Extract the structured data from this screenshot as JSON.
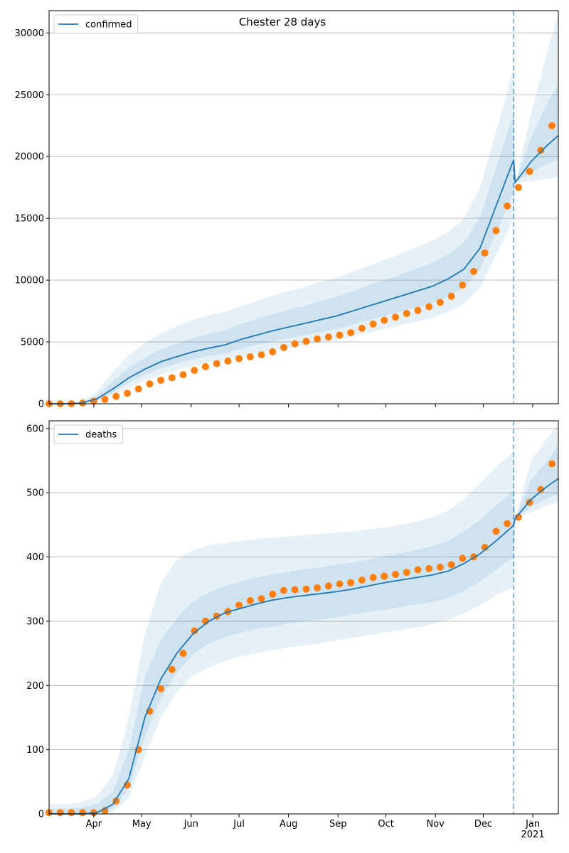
{
  "chart_data": [
    {
      "type": "line",
      "title": "Chester 28 days",
      "x": [
        63,
        73,
        83,
        93,
        103,
        113,
        123,
        133,
        143,
        153,
        163,
        173,
        183,
        193,
        203,
        213,
        223,
        233,
        243,
        253,
        263,
        273,
        283,
        293,
        303,
        313,
        323,
        333,
        343,
        353,
        354,
        355,
        365,
        375,
        382
      ],
      "series": [
        {
          "name": "confirmed",
          "color": "#1f77b4",
          "values": [
            0,
            0,
            50,
            400,
            1200,
            2100,
            2800,
            3400,
            3800,
            4200,
            4500,
            4750,
            5200,
            5550,
            5900,
            6200,
            6500,
            6800,
            7100,
            7500,
            7900,
            8300,
            8700,
            9100,
            9500,
            10100,
            10900,
            12600,
            16000,
            19400,
            19700,
            17900,
            19600,
            20900,
            21700
          ]
        }
      ],
      "band_color": "#1f77b4",
      "bands": [
        {
          "lower": [
            0,
            0,
            20,
            200,
            700,
            1300,
            1900,
            2400,
            2750,
            3050,
            3300,
            3500,
            3800,
            4050,
            4300,
            4500,
            4750,
            4950,
            5150,
            5450,
            5750,
            6050,
            6350,
            6650,
            6950,
            7450,
            8100,
            9400,
            12000,
            14700,
            14900,
            17900,
            18000,
            18200,
            18300
          ],
          "upper": [
            0,
            0,
            150,
            1000,
            2600,
            3900,
            4900,
            5700,
            6300,
            6800,
            7150,
            7450,
            7900,
            8300,
            8750,
            9100,
            9450,
            9850,
            10200,
            10700,
            11150,
            11650,
            12100,
            12650,
            13200,
            13900,
            15000,
            17500,
            22000,
            26700,
            27100,
            17900,
            23500,
            28500,
            31500
          ]
        },
        {
          "lower": [
            0,
            0,
            35,
            300,
            950,
            1700,
            2350,
            2900,
            3250,
            3600,
            3850,
            4050,
            4450,
            4750,
            5050,
            5300,
            5550,
            5800,
            6050,
            6400,
            6750,
            7100,
            7450,
            7800,
            8150,
            8700,
            9400,
            10900,
            13800,
            16800,
            17000,
            17900,
            18700,
            19400,
            19800
          ],
          "upper": [
            0,
            0,
            90,
            650,
            1800,
            2900,
            3700,
            4400,
            4850,
            5300,
            5650,
            5950,
            6450,
            6850,
            7250,
            7600,
            7950,
            8300,
            8650,
            9100,
            9550,
            10000,
            10450,
            10950,
            11400,
            12100,
            13050,
            15100,
            19100,
            23100,
            23500,
            17900,
            21500,
            24300,
            25800
          ]
        }
      ],
      "observed": {
        "color": "#ff7f0e",
        "x": [
          63,
          70,
          77,
          84,
          91,
          98,
          105,
          112,
          119,
          126,
          133,
          140,
          147,
          154,
          161,
          168,
          175,
          182,
          189,
          196,
          203,
          210,
          217,
          224,
          231,
          238,
          245,
          252,
          259,
          266,
          273,
          280,
          287,
          294,
          301,
          308,
          315,
          322,
          329,
          336,
          343,
          350,
          357,
          364,
          371,
          378
        ],
        "values": [
          0,
          0,
          10,
          60,
          200,
          350,
          600,
          850,
          1200,
          1600,
          1900,
          2100,
          2350,
          2700,
          3000,
          3250,
          3450,
          3650,
          3800,
          3950,
          4200,
          4550,
          4850,
          5050,
          5250,
          5400,
          5550,
          5750,
          6100,
          6450,
          6750,
          7000,
          7300,
          7550,
          7850,
          8200,
          8700,
          9600,
          10700,
          12200,
          14000,
          16000,
          17500,
          18800,
          20500,
          22500
        ]
      },
      "vline": 354,
      "xlim": [
        63,
        382
      ],
      "ylim": [
        0,
        31800
      ],
      "yticks": [
        0,
        5000,
        10000,
        15000,
        20000,
        25000,
        30000
      ],
      "grid": true,
      "legend": "upper left"
    },
    {
      "type": "line",
      "x": [
        63,
        73,
        83,
        93,
        103,
        113,
        123,
        133,
        143,
        153,
        163,
        173,
        183,
        193,
        203,
        213,
        223,
        233,
        243,
        253,
        263,
        273,
        283,
        293,
        303,
        313,
        323,
        333,
        343,
        353,
        354,
        355,
        365,
        375,
        382
      ],
      "series": [
        {
          "name": "deaths",
          "color": "#1f77b4",
          "values": [
            0,
            0,
            0,
            2,
            15,
            55,
            150,
            210,
            250,
            280,
            300,
            313,
            320,
            327,
            333,
            337,
            340,
            343,
            346,
            350,
            355,
            360,
            364,
            368,
            372,
            378,
            390,
            405,
            425,
            447,
            450,
            460,
            490,
            510,
            522
          ]
        }
      ],
      "band_color": "#1f77b4",
      "bands": [
        {
          "lower": [
            0,
            0,
            0,
            0,
            3,
            25,
            90,
            150,
            190,
            215,
            228,
            238,
            245,
            250,
            255,
            259,
            262,
            266,
            270,
            274,
            278,
            282,
            286,
            290,
            295,
            302,
            312,
            325,
            340,
            352,
            354,
            460,
            470,
            480,
            485
          ],
          "upper": [
            15,
            15,
            18,
            28,
            60,
            150,
            280,
            360,
            395,
            410,
            418,
            422,
            425,
            428,
            430,
            432,
            434,
            436,
            438,
            440,
            443,
            446,
            450,
            455,
            462,
            472,
            490,
            515,
            540,
            562,
            565,
            460,
            550,
            585,
            607
          ]
        },
        {
          "lower": [
            0,
            0,
            0,
            1,
            8,
            40,
            120,
            180,
            220,
            248,
            265,
            275,
            282,
            288,
            292,
            296,
            300,
            303,
            306,
            310,
            314,
            318,
            322,
            326,
            330,
            336,
            347,
            362,
            380,
            398,
            400,
            460,
            478,
            492,
            498
          ],
          "upper": [
            8,
            8,
            10,
            15,
            35,
            100,
            215,
            270,
            305,
            330,
            345,
            355,
            362,
            368,
            373,
            377,
            381,
            384,
            388,
            391,
            396,
            401,
            406,
            411,
            417,
            425,
            440,
            458,
            480,
            502,
            505,
            460,
            520,
            550,
            575
          ]
        }
      ],
      "observed": {
        "color": "#ff7f0e",
        "x": [
          63,
          70,
          77,
          84,
          91,
          98,
          105,
          112,
          119,
          126,
          133,
          140,
          147,
          154,
          161,
          168,
          175,
          182,
          189,
          196,
          203,
          210,
          217,
          224,
          231,
          238,
          245,
          252,
          259,
          266,
          273,
          280,
          287,
          294,
          301,
          308,
          315,
          322,
          329,
          336,
          343,
          350,
          357,
          364,
          371,
          378
        ],
        "values": [
          2,
          2,
          2,
          2,
          2,
          5,
          20,
          45,
          100,
          160,
          195,
          225,
          250,
          285,
          300,
          308,
          315,
          325,
          332,
          335,
          342,
          348,
          349,
          350,
          352,
          355,
          358,
          360,
          364,
          368,
          370,
          373,
          376,
          380,
          382,
          384,
          388,
          398,
          400,
          415,
          440,
          452,
          462,
          485,
          505,
          545
        ]
      },
      "vline": 354,
      "xlim": [
        63,
        382
      ],
      "ylim": [
        0,
        612
      ],
      "yticks": [
        0,
        100,
        200,
        300,
        400,
        500,
        600
      ],
      "xticks": [
        {
          "value": 91,
          "label": "Apr"
        },
        {
          "value": 121,
          "label": "May"
        },
        {
          "value": 152,
          "label": "Jun"
        },
        {
          "value": 182,
          "label": "Jul"
        },
        {
          "value": 213,
          "label": "Aug"
        },
        {
          "value": 244,
          "label": "Sep"
        },
        {
          "value": 274,
          "label": "Oct"
        },
        {
          "value": 305,
          "label": "Nov"
        },
        {
          "value": 335,
          "label": "Dec"
        },
        {
          "value": 366,
          "label": "Jan\n2021"
        }
      ],
      "grid": true,
      "legend": "upper left"
    }
  ]
}
